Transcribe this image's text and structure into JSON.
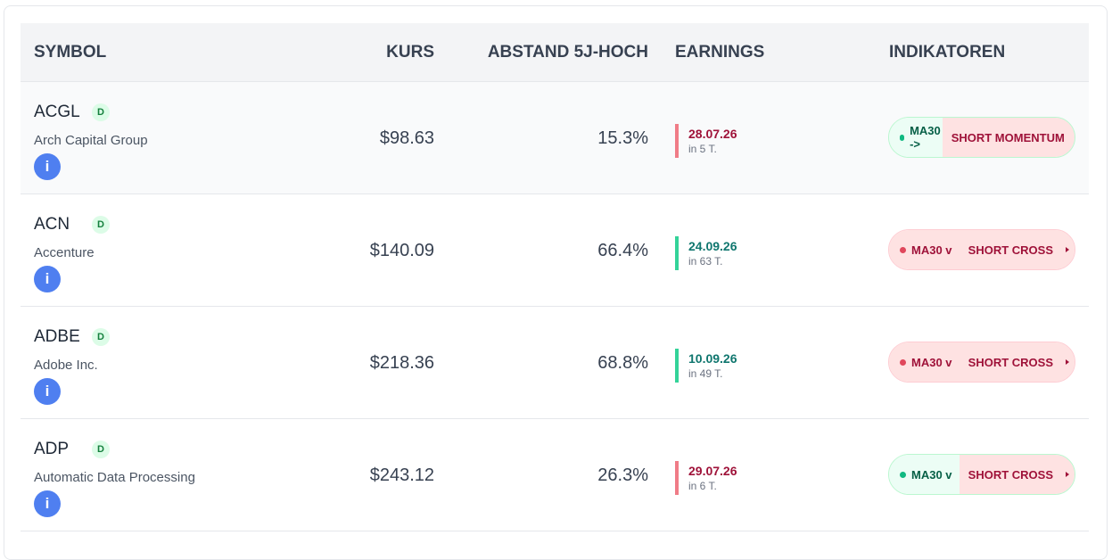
{
  "table": {
    "headers": [
      "SYMBOL",
      "KURS",
      "ABSTAND 5J-HOCH",
      "EARNINGS",
      "INDIKATOREN"
    ],
    "rows": [
      {
        "symbol": "ACGL",
        "badge": "D",
        "name": "Arch Capital Group",
        "info": "i",
        "price": "$98.63",
        "distance": "15.3%",
        "earnings_date": "28.07.26",
        "earnings_in": "in 5 T.",
        "earnings_tone": "red",
        "ma": "MA30 ->",
        "ma_tone": "green",
        "signal": "SHORT MOMENTUM"
      },
      {
        "symbol": "ACN",
        "badge": "D",
        "name": "Accenture",
        "info": "i",
        "price": "$140.09",
        "distance": "66.4%",
        "earnings_date": "24.09.26",
        "earnings_in": "in 63 T.",
        "earnings_tone": "green",
        "ma": "MA30 v",
        "ma_tone": "red",
        "signal": "SHORT CROSS"
      },
      {
        "symbol": "ADBE",
        "badge": "D",
        "name": "Adobe Inc.",
        "info": "i",
        "price": "$218.36",
        "distance": "68.8%",
        "earnings_date": "10.09.26",
        "earnings_in": "in 49 T.",
        "earnings_tone": "green",
        "ma": "MA30 v",
        "ma_tone": "red",
        "signal": "SHORT CROSS"
      },
      {
        "symbol": "ADP",
        "badge": "D",
        "name": "Automatic Data Processing",
        "info": "i",
        "price": "$243.12",
        "distance": "26.3%",
        "earnings_date": "29.07.26",
        "earnings_in": "in 6 T.",
        "earnings_tone": "red",
        "ma": "MA30 v",
        "ma_tone": "green",
        "signal": "SHORT CROSS"
      }
    ]
  }
}
